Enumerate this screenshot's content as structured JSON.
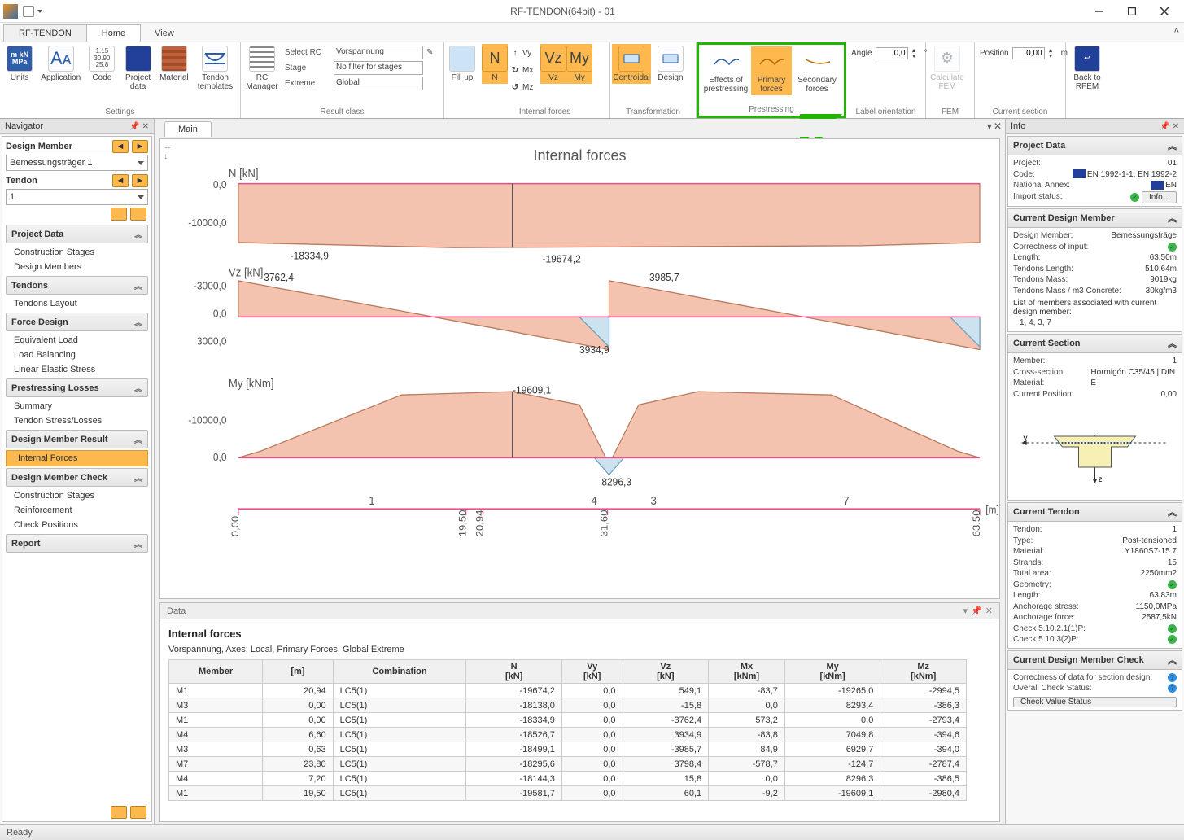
{
  "app": {
    "title": "RF-TENDON(64bit) - 01",
    "status": "Ready"
  },
  "tabs": {
    "rf": "RF-TENDON",
    "home": "Home",
    "view": "View"
  },
  "ribbon": {
    "settings": {
      "group": "Settings",
      "units": "Units",
      "application": "Application",
      "code": "Code",
      "projectdata": "Project data",
      "material": "Material",
      "tendon": "Tendon templates"
    },
    "resultclass": {
      "group": "Result class",
      "rcmanager": "RC Manager",
      "selectrc_lbl": "Select RC",
      "selectrc": "Vorspannung",
      "stage_lbl": "Stage",
      "stage": "No filter for stages",
      "extreme_lbl": "Extreme",
      "extreme": "Global",
      "fillup": "Fill up"
    },
    "internal": {
      "group": "Internal forces",
      "n": "N",
      "vz": "Vz",
      "my": "My",
      "vy": "Vy",
      "mx": "Mx",
      "mz": "Mz"
    },
    "transformation": {
      "group": "Transformation",
      "centroidal": "Centroidal",
      "design": "Design"
    },
    "prestressing": {
      "group": "Prestressing",
      "effects": "Effects of prestressing",
      "primary": "Primary forces",
      "secondary": "Secondary forces"
    },
    "labelorient": {
      "group": "Label orientation",
      "angle_lbl": "Angle",
      "angle": "0,0",
      "unit": "°"
    },
    "fem": {
      "group": "FEM",
      "calc": "Calculate FEM"
    },
    "currentsection": {
      "group": "Current section",
      "pos_lbl": "Position",
      "pos": "0,00",
      "unit": "m"
    },
    "back": {
      "label": "Back to RFEM"
    }
  },
  "navigator": {
    "title": "Navigator",
    "designmember_lbl": "Design Member",
    "designmember_val": "Bemessungsträger 1",
    "tendon_lbl": "Tendon",
    "tendon_val": "1",
    "sections": {
      "projectdata": "Project Data",
      "pd_items": [
        "Construction Stages",
        "Design Members"
      ],
      "tendons": "Tendons",
      "td_items": [
        "Tendons Layout"
      ],
      "forcedesign": "Force Design",
      "fd_items": [
        "Equivalent Load",
        "Load Balancing",
        "Linear Elastic Stress"
      ],
      "losses": "Prestressing Losses",
      "ls_items": [
        "Summary",
        "Tendon Stress/Losses"
      ],
      "dmresult": "Design Member Result",
      "dmr_items": [
        "Internal Forces"
      ],
      "dmcheck": "Design Member Check",
      "dc_items": [
        "Construction Stages",
        "Reinforcement",
        "Check Positions"
      ],
      "report": "Report"
    }
  },
  "main": {
    "tab": "Main",
    "title": "Internal forces",
    "axis_style": {
      "stroke": "#e94f8b",
      "label_color": "#555555",
      "fill_pos": "#f4c3af",
      "fill_neg": "#cce3ef",
      "line": "#333333"
    },
    "charts": {
      "N": {
        "label": "N [kN]",
        "ticks": [
          "0,0",
          "-10000,0"
        ],
        "min": -10000,
        "max": 0,
        "annot": [
          {
            "t": "-18334,9",
            "xr": 0.07,
            "y": 1.05
          },
          {
            "t": "-19674,2",
            "xr": 0.41,
            "y": 1.1
          }
        ],
        "poly": [
          [
            0,
            0
          ],
          [
            0,
            0.92
          ],
          [
            0.29,
            1.0
          ],
          [
            0.84,
            0.97
          ],
          [
            1,
            0.92
          ],
          [
            1,
            0
          ]
        ]
      },
      "Vz": {
        "label": "Vz [kN]",
        "ticks": [
          "-3000,0",
          "0,0",
          "3000,0"
        ],
        "annot": [
          {
            "t": "-3762,4",
            "xr": 0.03,
            "y": -0.06
          },
          {
            "t": "3934,9",
            "xr": 0.46,
            "y": 1.12,
            "below": true
          },
          {
            "t": "-3985,7",
            "xr": 0.55,
            "y": -0.08
          }
        ],
        "segA": [
          [
            0,
            0.5
          ],
          [
            0,
            0.0
          ],
          [
            0.5,
            0.95
          ],
          [
            0.5,
            0.5
          ]
        ],
        "segB": [
          [
            0.5,
            0.5
          ],
          [
            0.5,
            0.0
          ],
          [
            1,
            0.95
          ],
          [
            1,
            0.5
          ]
        ]
      },
      "My": {
        "label": "My [kNm]",
        "ticks": [
          "-10000,0",
          "0,0"
        ],
        "annot": [
          {
            "t": "-19609,1",
            "xr": 0.37,
            "y": -0.05
          },
          {
            "t": "8296,3",
            "xr": 0.49,
            "y": 1.15,
            "below": true
          }
        ],
        "poly": [
          [
            0,
            1
          ],
          [
            0.03,
            0.9
          ],
          [
            0.22,
            0.05
          ],
          [
            0.37,
            0.0
          ],
          [
            0.46,
            0.2
          ],
          [
            0.5,
            1.1
          ],
          [
            0.54,
            0.2
          ],
          [
            0.62,
            0.0
          ],
          [
            0.8,
            0.05
          ],
          [
            0.97,
            0.9
          ],
          [
            1,
            1
          ]
        ]
      }
    },
    "xaxis": {
      "ticks": [
        {
          "x": 0.0,
          "lbl": "0,00"
        },
        {
          "x": 0.307,
          "lbl": "19,50"
        },
        {
          "x": 0.33,
          "lbl": "20,94"
        },
        {
          "x": 0.498,
          "lbl": "31,60"
        },
        {
          "x": 1.0,
          "lbl": "63,50"
        }
      ],
      "segments": [
        {
          "x": 0.18,
          "lbl": "1"
        },
        {
          "x": 0.48,
          "lbl": "4"
        },
        {
          "x": 0.56,
          "lbl": "3"
        },
        {
          "x": 0.82,
          "lbl": "7"
        }
      ],
      "unit": "[m]"
    }
  },
  "data": {
    "title": "Data",
    "h": "Internal forces",
    "sub": "Vorspannung, Axes: Local, Primary Forces, Global Extreme",
    "cols": [
      "Member",
      "[m]",
      "Combination",
      "N\n[kN]",
      "Vy\n[kN]",
      "Vz\n[kN]",
      "Mx\n[kNm]",
      "My\n[kNm]",
      "Mz\n[kNm]"
    ],
    "rows": [
      [
        "M1",
        "20,94",
        "LC5(1)",
        "-19674,2",
        "0,0",
        "549,1",
        "-83,7",
        "-19265,0",
        "-2994,5"
      ],
      [
        "M3",
        "0,00",
        "LC5(1)",
        "-18138,0",
        "0,0",
        "-15,8",
        "0,0",
        "8293,4",
        "-386,3"
      ],
      [
        "M1",
        "0,00",
        "LC5(1)",
        "-18334,9",
        "0,0",
        "-3762,4",
        "573,2",
        "0,0",
        "-2793,4"
      ],
      [
        "M4",
        "6,60",
        "LC5(1)",
        "-18526,7",
        "0,0",
        "3934,9",
        "-83,8",
        "7049,8",
        "-394,6"
      ],
      [
        "M3",
        "0,63",
        "LC5(1)",
        "-18499,1",
        "0,0",
        "-3985,7",
        "84,9",
        "6929,7",
        "-394,0"
      ],
      [
        "M7",
        "23,80",
        "LC5(1)",
        "-18295,6",
        "0,0",
        "3798,4",
        "-578,7",
        "-124,7",
        "-2787,4"
      ],
      [
        "M4",
        "7,20",
        "LC5(1)",
        "-18144,3",
        "0,0",
        "15,8",
        "0,0",
        "8296,3",
        "-386,5"
      ],
      [
        "M1",
        "19,50",
        "LC5(1)",
        "-19581,7",
        "0,0",
        "60,1",
        "-9,2",
        "-19609,1",
        "-2980,4"
      ]
    ]
  },
  "info": {
    "title": "Info",
    "projectdata": {
      "head": "Project Data",
      "rows": [
        [
          "Project:",
          "01"
        ],
        [
          "Code:",
          "EN 1992-1-1, EN 1992-2"
        ],
        [
          "National Annex:",
          "EN"
        ],
        [
          "Import status:",
          ""
        ]
      ],
      "infobtn": "Info..."
    },
    "curdm": {
      "head": "Current Design Member",
      "rows": [
        [
          "Design Member:",
          "Bemessungsträge"
        ],
        [
          "Correctness of input:",
          ""
        ],
        [
          "Length:",
          "63,50m"
        ],
        [
          "Tendons Length:",
          "510,64m"
        ],
        [
          "Tendons Mass:",
          "9019kg"
        ],
        [
          "Tendons Mass / m3 Concrete:",
          "30kg/m3"
        ]
      ],
      "note": "List of members associated with current design member:",
      "members": "1, 4, 3, 7"
    },
    "cursec": {
      "head": "Current Section",
      "rows": [
        [
          "Member:",
          "1"
        ],
        [
          "Cross-section Material:",
          "Hormigón C35/45 | DIN E"
        ],
        [
          "Current Position:",
          "0,00"
        ]
      ]
    },
    "curtendon": {
      "head": "Current Tendon",
      "rows": [
        [
          "Tendon:",
          "1"
        ],
        [
          "Type:",
          "Post-tensioned"
        ],
        [
          "Material:",
          "Y1860S7-15.7"
        ],
        [
          "Strands:",
          "15"
        ],
        [
          "Total area:",
          "2250mm2"
        ],
        [
          "Geometry:",
          ""
        ],
        [
          "Length:",
          "63,83m"
        ]
      ],
      "extra": [
        [
          "Anchorage stress:",
          "1150,0MPa"
        ],
        [
          "Anchorage force:",
          "2587,5kN"
        ],
        [
          "Check 5.10.2.1(1)P:",
          ""
        ],
        [
          "Check 5.10.3(2)P:",
          ""
        ]
      ]
    },
    "curcheck": {
      "head": "Current Design Member Check",
      "rows": [
        [
          "Correctness of data for section design:",
          ""
        ],
        [
          "Overall Check Status:",
          ""
        ]
      ],
      "btn": "Check Value Status"
    }
  }
}
